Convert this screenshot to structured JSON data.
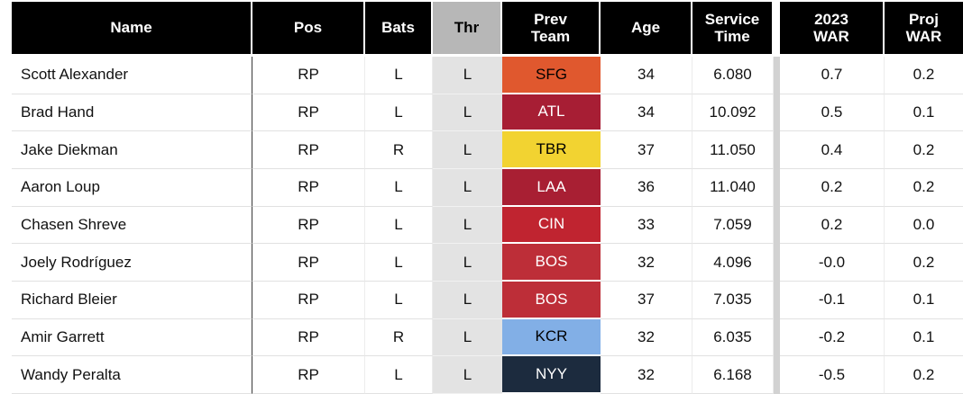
{
  "table": {
    "columns": [
      {
        "key": "name",
        "label": "Name"
      },
      {
        "key": "pos",
        "label": "Pos"
      },
      {
        "key": "bats",
        "label": "Bats"
      },
      {
        "key": "thr",
        "label": "Thr"
      },
      {
        "key": "prev_team",
        "label": "Prev\nTeam"
      },
      {
        "key": "age",
        "label": "Age"
      },
      {
        "key": "service_time",
        "label": "Service\nTime"
      },
      {
        "key": "war_2023",
        "label": "2023\nWAR"
      },
      {
        "key": "proj_war",
        "label": "Proj\nWAR"
      }
    ],
    "rows": [
      {
        "name": "Scott Alexander",
        "pos": "RP",
        "bats": "L",
        "thr": "L",
        "prev_team": "SFG",
        "team_bg": "#e0582e",
        "team_fg": "#000000",
        "age": "34",
        "service_time": "6.080",
        "war_2023": "0.7",
        "proj_war": "0.2"
      },
      {
        "name": "Brad Hand",
        "pos": "RP",
        "bats": "L",
        "thr": "L",
        "prev_team": "ATL",
        "team_bg": "#a71e34",
        "team_fg": "#ffffff",
        "age": "34",
        "service_time": "10.092",
        "war_2023": "0.5",
        "proj_war": "0.1"
      },
      {
        "name": "Jake Diekman",
        "pos": "RP",
        "bats": "R",
        "thr": "L",
        "prev_team": "TBR",
        "team_bg": "#f2d331",
        "team_fg": "#000000",
        "age": "37",
        "service_time": "11.050",
        "war_2023": "0.4",
        "proj_war": "0.2"
      },
      {
        "name": "Aaron Loup",
        "pos": "RP",
        "bats": "L",
        "thr": "L",
        "prev_team": "LAA",
        "team_bg": "#a81f33",
        "team_fg": "#ffffff",
        "age": "36",
        "service_time": "11.040",
        "war_2023": "0.2",
        "proj_war": "0.2"
      },
      {
        "name": "Chasen Shreve",
        "pos": "RP",
        "bats": "L",
        "thr": "L",
        "prev_team": "CIN",
        "team_bg": "#c02430",
        "team_fg": "#ffffff",
        "age": "33",
        "service_time": "7.059",
        "war_2023": "0.2",
        "proj_war": "0.0"
      },
      {
        "name": "Joely Rodríguez",
        "pos": "RP",
        "bats": "L",
        "thr": "L",
        "prev_team": "BOS",
        "team_bg": "#bd2e38",
        "team_fg": "#ffffff",
        "age": "32",
        "service_time": "4.096",
        "war_2023": "-0.0",
        "proj_war": "0.2"
      },
      {
        "name": "Richard Bleier",
        "pos": "RP",
        "bats": "L",
        "thr": "L",
        "prev_team": "BOS",
        "team_bg": "#bd2e38",
        "team_fg": "#ffffff",
        "age": "37",
        "service_time": "7.035",
        "war_2023": "-0.1",
        "proj_war": "0.1"
      },
      {
        "name": "Amir Garrett",
        "pos": "RP",
        "bats": "R",
        "thr": "L",
        "prev_team": "KCR",
        "team_bg": "#82afe6",
        "team_fg": "#000000",
        "age": "32",
        "service_time": "6.035",
        "war_2023": "-0.2",
        "proj_war": "0.1"
      },
      {
        "name": "Wandy Peralta",
        "pos": "RP",
        "bats": "L",
        "thr": "L",
        "prev_team": "NYY",
        "team_bg": "#1c2b3e",
        "team_fg": "#ffffff",
        "age": "32",
        "service_time": "6.168",
        "war_2023": "-0.5",
        "proj_war": "0.2"
      }
    ]
  },
  "colors": {
    "header_bg": "#000000",
    "header_fg": "#ffffff",
    "thr_header_bg": "#b7b7b7",
    "thr_header_fg": "#000000",
    "thr_cell_bg": "#e3e3e3",
    "row_border": "#e1e1e1",
    "name_col_border": "#3a3a3a",
    "freeze_divider": "#d2d2d2",
    "page_bg": "#ffffff"
  }
}
